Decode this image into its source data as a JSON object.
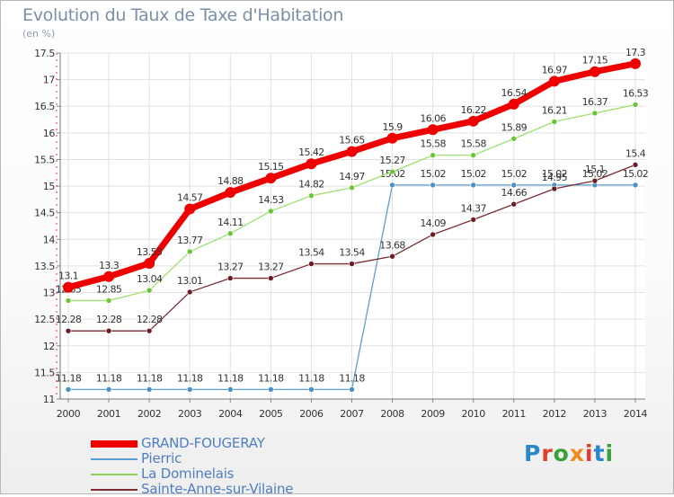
{
  "chart_data": {
    "type": "line",
    "title": "Evolution du Taux de Taxe d'Habitation",
    "subtitle": "(en %)",
    "x": [
      2000,
      2001,
      2002,
      2003,
      2004,
      2005,
      2006,
      2007,
      2008,
      2009,
      2010,
      2011,
      2012,
      2013,
      2014
    ],
    "ylim": [
      11,
      17.5
    ],
    "yticks": [
      "11",
      "11.5",
      "12",
      "12.5",
      "13",
      "13.5",
      "14",
      "14.5",
      "15",
      "15.5",
      "16",
      "16.5",
      "17",
      "17.5"
    ],
    "grid": true,
    "legend_position": "bottom-left",
    "series": [
      {
        "name": "Pierric",
        "color": "#5a9fd4",
        "dot": "#4a90c8",
        "values": [
          11.18,
          11.18,
          11.18,
          11.18,
          11.18,
          11.18,
          11.18,
          11.18,
          15.02,
          15.02,
          15.02,
          15.02,
          15.02,
          15.02,
          15.02
        ],
        "labels": [
          "11.18",
          "11.18",
          "11.18",
          "11.18",
          "11.18",
          "11.18",
          "11.18",
          "11.18",
          "15.02",
          "15.02",
          "15.02",
          "15.02",
          "15.02",
          "15.02",
          "15.02"
        ]
      },
      {
        "name": "La Dominelais",
        "color": "#9fe070",
        "dot": "#6cc534",
        "values": [
          12.85,
          12.85,
          13.04,
          13.77,
          14.11,
          14.53,
          14.82,
          14.97,
          15.27,
          15.58,
          15.58,
          15.89,
          16.21,
          16.37,
          16.53
        ],
        "labels": [
          "12.85",
          "12.85",
          "13.04",
          "13.77",
          "14.11",
          "14.53",
          "14.82",
          "14.97",
          "15.27",
          "15.58",
          "15.58",
          "15.89",
          "16.21",
          "16.37",
          "16.53"
        ]
      },
      {
        "name": "Sainte-Anne-sur-Vilaine",
        "color": "#7a2c32",
        "dot": "#6a1e24",
        "values": [
          12.28,
          12.28,
          12.28,
          13.01,
          13.27,
          13.27,
          13.54,
          13.54,
          13.68,
          14.09,
          14.37,
          14.66,
          14.95,
          15.1,
          15.4
        ],
        "labels": [
          "12.28",
          "12.28",
          "12.28",
          "13.01",
          "13.27",
          "13.27",
          "13.54",
          "13.54",
          "13.68",
          "14.09",
          "14.37",
          "14.66",
          "14.95",
          "15.1",
          "15.4"
        ]
      },
      {
        "name": "GRAND-FOUGERAY",
        "color": "#ee0000",
        "dot": "#ee0000",
        "values": [
          13.1,
          13.3,
          13.55,
          14.57,
          14.88,
          15.15,
          15.42,
          15.65,
          15.9,
          16.06,
          16.22,
          16.54,
          16.97,
          17.15,
          17.3
        ],
        "labels": [
          "13.1",
          "13.3",
          "13.55",
          "14.57",
          "14.88",
          "15.15",
          "15.42",
          "15.65",
          "15.9",
          "16.06",
          "16.22",
          "16.54",
          "16.97",
          "17.15",
          "17.3"
        ]
      }
    ]
  },
  "legend": [
    {
      "name": "GRAND-FOUGERAY",
      "color": "#ee0000"
    },
    {
      "name": "Pierric",
      "color": "#5a9fd4"
    },
    {
      "name": "La Dominelais",
      "color": "#8ed05a"
    },
    {
      "name": "Sainte-Anne-sur-Vilaine",
      "color": "#7a2c32"
    }
  ],
  "logo": {
    "text": "Proxiti",
    "colors": [
      "#2a86c9",
      "#e23c2c",
      "#3aa03a",
      "#f08a1c",
      "#e23c2c",
      "#2a86c9",
      "#3aa03a"
    ]
  }
}
